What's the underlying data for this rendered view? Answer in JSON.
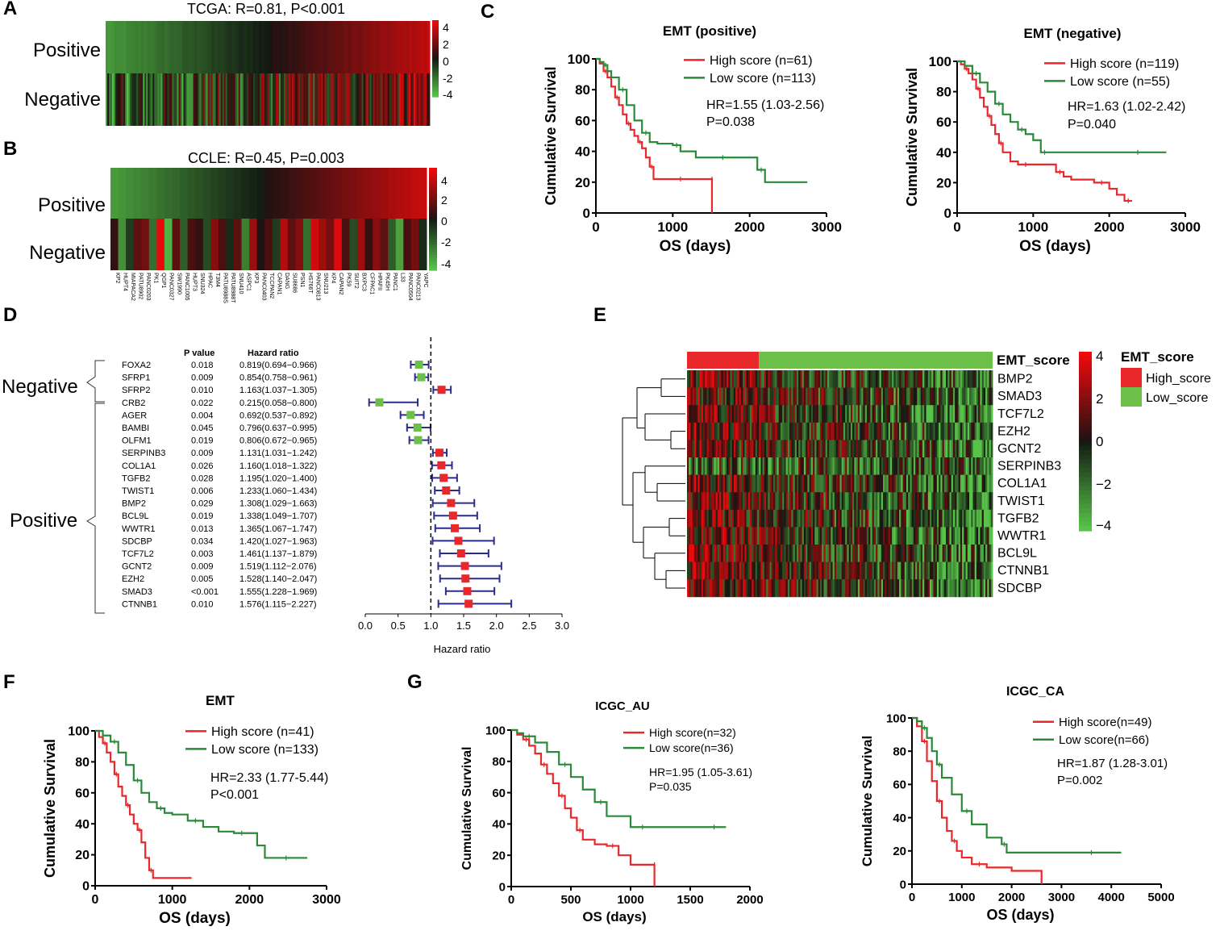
{
  "colors": {
    "red": "#e8282b",
    "green": "#2a8a3a",
    "lightgreen": "#6cc04a",
    "navy": "#2c2c8c",
    "black": "#000000"
  },
  "panels": {
    "A": {
      "letter": "A",
      "title": "TCGA: R=0.81, P<0.001",
      "row_labels": [
        "Positive",
        "Negative"
      ],
      "scale": [
        "4",
        "2",
        "0",
        "-2",
        "-4"
      ]
    },
    "B": {
      "letter": "B",
      "title": "CCLE: R=0.45, P=0.003",
      "row_labels": [
        "Positive",
        "Negative"
      ],
      "scale": [
        "4",
        "2",
        "0",
        "-2",
        "-4"
      ],
      "cell_lines": [
        "KP2",
        "HUPT4",
        "MIAPACA2",
        "PATU8902",
        "PANC0203",
        "PK1",
        "QGP1",
        "PANC0327",
        "SW1990",
        "PANC1005",
        "HUPT3",
        "SNU324",
        "HPAC",
        "T3M4",
        "PATU8988S",
        "PATU8988T",
        "SNU410",
        "ASPC1",
        "KP3",
        "PANC0403",
        "TCCPAN2",
        "CAPAN1",
        "DANG",
        "SU8686",
        "PSN1",
        "HS766T",
        "PANC0813",
        "SNU213",
        "KP4",
        "CAPAN2",
        "PK59",
        "SUIT2",
        "BXPC3",
        "CFPAC1",
        "HPAFII",
        "PK45H",
        "PANC1",
        "L33",
        "PANC0504",
        "PANC0213",
        "YAPC"
      ]
    },
    "C": {
      "letter": "C"
    },
    "D": {
      "letter": "D",
      "col_pvalue": "P value",
      "col_hr": "Hazard ratio",
      "group_negative": "Negative",
      "group_positive": "Positive",
      "xlabel": "Hazard ratio",
      "xticks": [
        "0.0",
        "0.5",
        "1.0",
        "1.5",
        "2.0",
        "2.5",
        "3.0"
      ],
      "rows": [
        {
          "gene": "FOXA2",
          "p": "0.018",
          "hr_text": "0.819(0.694−0.966)",
          "hr": 0.819,
          "lo": 0.694,
          "hi": 0.966,
          "group": "negative"
        },
        {
          "gene": "SFRP1",
          "p": "0.009",
          "hr_text": "0.854(0.758−0.961)",
          "hr": 0.854,
          "lo": 0.758,
          "hi": 0.961,
          "group": "negative"
        },
        {
          "gene": "SFRP2",
          "p": "0.010",
          "hr_text": "1.163(1.037−1.305)",
          "hr": 1.163,
          "lo": 1.037,
          "hi": 1.305,
          "group": "negative"
        },
        {
          "gene": "CRB2",
          "p": "0.022",
          "hr_text": "0.215(0.058−0.800)",
          "hr": 0.215,
          "lo": 0.058,
          "hi": 0.8,
          "group": "positive"
        },
        {
          "gene": "AGER",
          "p": "0.004",
          "hr_text": "0.692(0.537−0.892)",
          "hr": 0.692,
          "lo": 0.537,
          "hi": 0.892,
          "group": "positive"
        },
        {
          "gene": "BAMBI",
          "p": "0.045",
          "hr_text": "0.796(0.637−0.995)",
          "hr": 0.796,
          "lo": 0.637,
          "hi": 0.995,
          "group": "positive"
        },
        {
          "gene": "OLFM1",
          "p": "0.019",
          "hr_text": "0.806(0.672−0.965)",
          "hr": 0.806,
          "lo": 0.672,
          "hi": 0.965,
          "group": "positive"
        },
        {
          "gene": "SERPINB3",
          "p": "0.009",
          "hr_text": "1.131(1.031−1.242)",
          "hr": 1.131,
          "lo": 1.031,
          "hi": 1.242,
          "group": "positive"
        },
        {
          "gene": "COL1A1",
          "p": "0.026",
          "hr_text": "1.160(1.018−1.322)",
          "hr": 1.16,
          "lo": 1.018,
          "hi": 1.322,
          "group": "positive"
        },
        {
          "gene": "TGFB2",
          "p": "0.028",
          "hr_text": "1.195(1.020−1.400)",
          "hr": 1.195,
          "lo": 1.02,
          "hi": 1.4,
          "group": "positive"
        },
        {
          "gene": "TWIST1",
          "p": "0.006",
          "hr_text": "1.233(1.060−1.434)",
          "hr": 1.233,
          "lo": 1.06,
          "hi": 1.434,
          "group": "positive"
        },
        {
          "gene": "BMP2",
          "p": "0.029",
          "hr_text": "1.308(1.029−1.663)",
          "hr": 1.308,
          "lo": 1.029,
          "hi": 1.663,
          "group": "positive"
        },
        {
          "gene": "BCL9L",
          "p": "0.019",
          "hr_text": "1.338(1.049−1.707)",
          "hr": 1.338,
          "lo": 1.049,
          "hi": 1.707,
          "group": "positive"
        },
        {
          "gene": "WWTR1",
          "p": "0.013",
          "hr_text": "1.365(1.067−1.747)",
          "hr": 1.365,
          "lo": 1.067,
          "hi": 1.747,
          "group": "positive"
        },
        {
          "gene": "SDCBP",
          "p": "0.034",
          "hr_text": "1.420(1.027−1.963)",
          "hr": 1.42,
          "lo": 1.027,
          "hi": 1.963,
          "group": "positive"
        },
        {
          "gene": "TCF7L2",
          "p": "0.003",
          "hr_text": "1.461(1.137−1.879)",
          "hr": 1.461,
          "lo": 1.137,
          "hi": 1.879,
          "group": "positive"
        },
        {
          "gene": "GCNT2",
          "p": "0.009",
          "hr_text": "1.519(1.112−2.076)",
          "hr": 1.519,
          "lo": 1.112,
          "hi": 2.076,
          "group": "positive"
        },
        {
          "gene": "EZH2",
          "p": "0.005",
          "hr_text": "1.528(1.140−2.047)",
          "hr": 1.528,
          "lo": 1.14,
          "hi": 2.047,
          "group": "positive"
        },
        {
          "gene": "SMAD3",
          "p": "<0.001",
          "hr_text": "1.555(1.228−1.969)",
          "hr": 1.555,
          "lo": 1.228,
          "hi": 1.969,
          "group": "positive"
        },
        {
          "gene": "CTNNB1",
          "p": "0.010",
          "hr_text": "1.576(1.115−2.227)",
          "hr": 1.576,
          "lo": 1.115,
          "hi": 2.227,
          "group": "positive"
        }
      ]
    },
    "E": {
      "letter": "E",
      "top_label": "EMT_score",
      "genes": [
        "BMP2",
        "SMAD3",
        "TCF7L2",
        "EZH2",
        "GCNT2",
        "SERPINB3",
        "COL1A1",
        "TWIST1",
        "TGFB2",
        "WWTR1",
        "BCL9L",
        "CTNNB1",
        "SDCBP"
      ],
      "scale": [
        "4",
        "2",
        "0",
        "−2",
        "−4"
      ],
      "legend_title": "EMT_score",
      "legend_high": "High_score",
      "legend_low": "Low_score"
    },
    "F": {
      "letter": "F"
    },
    "G": {
      "letter": "G"
    }
  },
  "chart_data": [
    {
      "id": "C1",
      "type": "line",
      "title": "EMT (positive)",
      "xlabel": "OS (days)",
      "ylabel": "Cumulative Survival",
      "xlim": [
        0,
        3000
      ],
      "ylim": [
        0,
        100
      ],
      "xticks": [
        "0",
        "1000",
        "2000",
        "3000"
      ],
      "yticks": [
        "0",
        "20",
        "40",
        "60",
        "80",
        "100"
      ],
      "annotation": [
        "HR=1.55 (1.03-2.56)",
        "P=0.038"
      ],
      "series": [
        {
          "name": "High score (n=61)",
          "color": "#e8282b",
          "x": [
            0,
            50,
            100,
            150,
            200,
            250,
            300,
            350,
            400,
            450,
            500,
            550,
            600,
            650,
            700,
            750,
            800,
            1000,
            1200,
            1400,
            1510,
            1510
          ],
          "y": [
            100,
            97,
            92,
            88,
            82,
            75,
            70,
            64,
            58,
            54,
            50,
            46,
            42,
            36,
            30,
            22,
            22,
            22,
            22,
            22,
            22,
            0
          ]
        },
        {
          "name": "Low score (n=113)",
          "color": "#2a8a3a",
          "x": [
            0,
            50,
            100,
            150,
            200,
            300,
            400,
            500,
            600,
            700,
            800,
            1000,
            1100,
            1300,
            1500,
            1800,
            2000,
            2100,
            2200,
            2750
          ],
          "y": [
            100,
            98,
            96,
            92,
            88,
            80,
            70,
            60,
            52,
            46,
            45,
            44,
            40,
            36,
            36,
            36,
            36,
            28,
            20,
            20
          ]
        }
      ]
    },
    {
      "id": "C2",
      "type": "line",
      "title": "EMT (negative)",
      "xlabel": "OS (days)",
      "ylabel": "Cumulative Survival",
      "xlim": [
        0,
        3000
      ],
      "ylim": [
        0,
        100
      ],
      "xticks": [
        "0",
        "1000",
        "2000",
        "3000"
      ],
      "yticks": [
        "0",
        "20",
        "40",
        "60",
        "80",
        "100"
      ],
      "annotation": [
        "HR=1.63 (1.02-2.42)",
        "P=0.040"
      ],
      "series": [
        {
          "name": "High score (n=119)",
          "color": "#e8282b",
          "x": [
            0,
            50,
            100,
            150,
            200,
            250,
            300,
            350,
            400,
            450,
            500,
            550,
            600,
            700,
            800,
            1000,
            1200,
            1300,
            1400,
            1500,
            1800,
            2000,
            2100,
            2200,
            2300
          ],
          "y": [
            100,
            98,
            95,
            92,
            88,
            82,
            76,
            70,
            64,
            58,
            52,
            46,
            40,
            34,
            32,
            32,
            32,
            27,
            24,
            22,
            20,
            16,
            12,
            8,
            8
          ]
        },
        {
          "name": "Low score (n=55)",
          "color": "#2a8a3a",
          "x": [
            0,
            100,
            200,
            300,
            400,
            500,
            600,
            700,
            800,
            900,
            1000,
            1100,
            1200,
            1500,
            2000,
            2750
          ],
          "y": [
            100,
            97,
            92,
            86,
            80,
            72,
            65,
            60,
            55,
            52,
            48,
            40,
            40,
            40,
            40,
            40
          ]
        }
      ]
    },
    {
      "id": "F",
      "type": "line",
      "title": "EMT",
      "xlabel": "OS (days)",
      "ylabel": "Cumulative Survival",
      "xlim": [
        0,
        3000
      ],
      "ylim": [
        0,
        100
      ],
      "xticks": [
        "0",
        "1000",
        "2000",
        "3000"
      ],
      "yticks": [
        "0",
        "20",
        "40",
        "60",
        "80",
        "100"
      ],
      "annotation": [
        "HR=2.33 (1.77-5.44)",
        "P<0.001"
      ],
      "series": [
        {
          "name": "High score (n=41)",
          "color": "#e8282b",
          "x": [
            0,
            50,
            100,
            150,
            200,
            250,
            300,
            350,
            400,
            450,
            500,
            550,
            600,
            650,
            700,
            750,
            1000,
            1250
          ],
          "y": [
            100,
            96,
            92,
            86,
            80,
            72,
            64,
            58,
            52,
            46,
            40,
            36,
            28,
            18,
            10,
            5,
            5,
            5
          ]
        },
        {
          "name": "Low score (n=133)",
          "color": "#2a8a3a",
          "x": [
            0,
            100,
            200,
            300,
            400,
            500,
            600,
            700,
            800,
            900,
            1000,
            1200,
            1400,
            1600,
            1800,
            2000,
            2100,
            2200,
            2750
          ],
          "y": [
            100,
            97,
            93,
            86,
            78,
            68,
            60,
            54,
            50,
            47,
            46,
            42,
            38,
            35,
            34,
            34,
            26,
            18,
            18
          ]
        }
      ]
    },
    {
      "id": "G1",
      "type": "line",
      "title": "ICGC_AU",
      "xlabel": "OS (days)",
      "ylabel": "Cumulative Survival",
      "xlim": [
        0,
        2000
      ],
      "ylim": [
        0,
        100
      ],
      "xticks": [
        "0",
        "500",
        "1000",
        "1500",
        "2000"
      ],
      "yticks": [
        "0",
        "20",
        "40",
        "60",
        "80",
        "100"
      ],
      "annotation": [
        "HR=1.95 (1.05-3.61)",
        "P=0.035"
      ],
      "series": [
        {
          "name": "High score(n=32)",
          "color": "#e8282b",
          "x": [
            0,
            50,
            100,
            150,
            200,
            250,
            300,
            350,
            400,
            450,
            500,
            550,
            600,
            700,
            800,
            900,
            1000,
            1200,
            1200
          ],
          "y": [
            100,
            97,
            94,
            90,
            85,
            78,
            72,
            66,
            58,
            50,
            44,
            36,
            30,
            27,
            26,
            20,
            14,
            14,
            0
          ]
        },
        {
          "name": "Low score(n=36)",
          "color": "#2a8a3a",
          "x": [
            0,
            50,
            100,
            200,
            300,
            400,
            500,
            600,
            700,
            800,
            900,
            1000,
            1200,
            1400,
            1600,
            1800
          ],
          "y": [
            100,
            98,
            96,
            92,
            86,
            78,
            70,
            62,
            54,
            45,
            45,
            38,
            38,
            38,
            38,
            38
          ]
        }
      ]
    },
    {
      "id": "G2",
      "type": "line",
      "title": "ICGC_CA",
      "xlabel": "OS (days)",
      "ylabel": "Cumulative Survival",
      "xlim": [
        0,
        5000
      ],
      "ylim": [
        0,
        100
      ],
      "xticks": [
        "0",
        "1000",
        "2000",
        "3000",
        "4000",
        "5000"
      ],
      "yticks": [
        "0",
        "20",
        "40",
        "60",
        "80",
        "100"
      ],
      "annotation": [
        "HR=1.87 (1.28-3.01)",
        "P=0.002"
      ],
      "series": [
        {
          "name": "High score(n=49)",
          "color": "#e8282b",
          "x": [
            0,
            100,
            200,
            300,
            400,
            500,
            600,
            700,
            800,
            900,
            1000,
            1200,
            1500,
            2000,
            2600,
            2600
          ],
          "y": [
            100,
            95,
            86,
            74,
            62,
            50,
            40,
            32,
            26,
            20,
            16,
            12,
            10,
            8,
            6,
            0
          ]
        },
        {
          "name": "Low score(n=66)",
          "color": "#2a8a3a",
          "x": [
            0,
            100,
            200,
            300,
            400,
            500,
            600,
            800,
            1000,
            1200,
            1500,
            1800,
            1900,
            2500,
            3000,
            4200
          ],
          "y": [
            100,
            98,
            94,
            88,
            80,
            72,
            64,
            54,
            44,
            36,
            28,
            24,
            19,
            19,
            19,
            19
          ]
        }
      ]
    }
  ]
}
